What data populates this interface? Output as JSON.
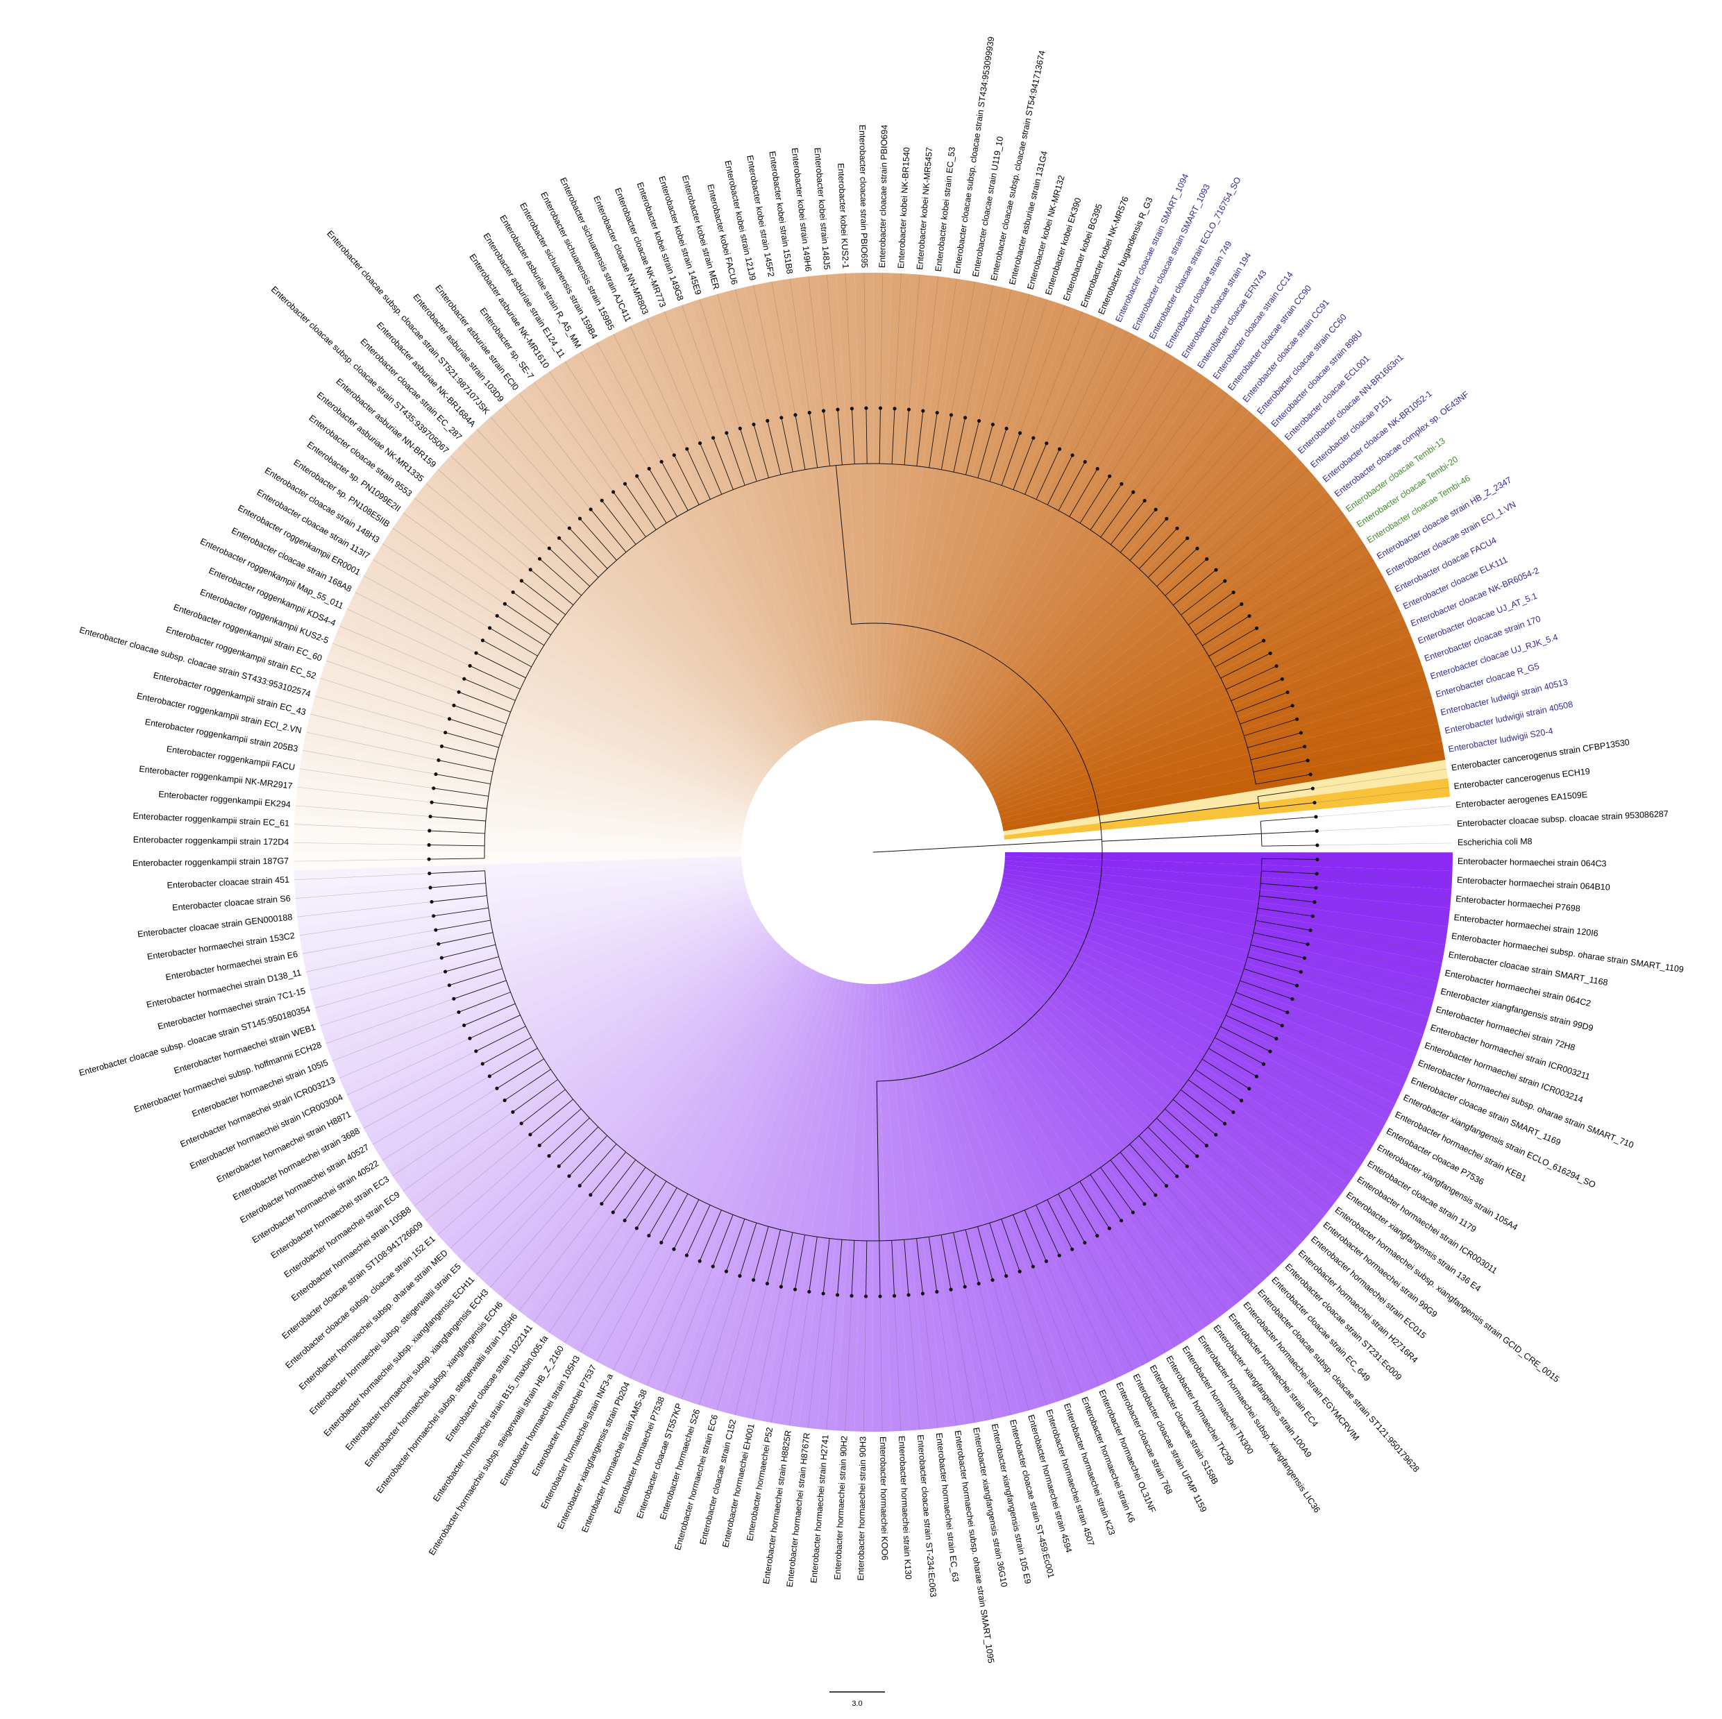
{
  "tree": {
    "clades": [
      {
        "color_from": "#fefbf8",
        "color_to": "#c5600a",
        "leaves": [
          {
            "label": "Enterobacter roggenkampii strain 187G7"
          },
          {
            "label": "Enterobacter roggenkampii strain 172D4"
          },
          {
            "label": "Enterobacter roggenkampii strain EC_61"
          },
          {
            "label": "Enterobacter roggenkampii EK294"
          },
          {
            "label": "Enterobacter roggenkampii NK-MR2917"
          },
          {
            "label": "Enterobacter roggenkampii FACU"
          },
          {
            "label": "Enterobacter roggenkampii strain 205B3"
          },
          {
            "label": "Enterobacter roggenkampii strain ECl_2.VN"
          },
          {
            "label": "Enterobacter roggenkampii strain EC_43"
          },
          {
            "label": "Enterobacter cloacae subsp. cloacae strain ST433:953102574"
          },
          {
            "label": "Enterobacter roggenkampii strain EC_52"
          },
          {
            "label": "Enterobacter roggenkampii strain EC_60"
          },
          {
            "label": "Enterobacter roggenkampii KUS2-5"
          },
          {
            "label": "Enterobacter roggenkampii KDS4-4"
          },
          {
            "label": "Enterobacter roggenkampii Map_55_011"
          },
          {
            "label": "Enterobacter cloacae strain 168A8"
          },
          {
            "label": "Enterobacter roggenkampii ER0001"
          },
          {
            "label": "Enterobacter cloacae strain 113I7"
          },
          {
            "label": "Enterobacter cloacae strain 148H3"
          },
          {
            "label": "Enterobacter sp. PN108E5IIB"
          },
          {
            "label": "Enterobacter sp. PN1099E2II"
          },
          {
            "label": "Enterobacter cloacae strain 9553"
          },
          {
            "label": "Enterobacter asburiae NK-MR1335"
          },
          {
            "label": "Enterobacter asburiae NN-BR159"
          },
          {
            "label": "Enterobacter cloacae subsp. cloacae strain ST435:939705067"
          },
          {
            "label": "Enterobacter cloacae strain EC_287"
          },
          {
            "label": "Enterobacter asburiae NK-BR1684A"
          },
          {
            "label": "Enterobacter cloacae subsp. cloacae strain ST521:987107JSK"
          },
          {
            "label": "Enterobacter asburiae strain 103D9"
          },
          {
            "label": "Enterobacter asburiae strain ECl0"
          },
          {
            "label": "Enterobacter sp. SE-7"
          },
          {
            "label": "Enterobacter asburiae NK-MR1610"
          },
          {
            "label": "Enterobacter asburiae strain E124_11"
          },
          {
            "label": "Enterobacter asburiae strain R_A5_MM"
          },
          {
            "label": "Enterobacter sichuanensis strain 159B4"
          },
          {
            "label": "Enterobacter sichuanensis strain 159B5"
          },
          {
            "label": "Enterobacter sichuanensis strain AJC411"
          },
          {
            "label": "Enterobacter cloacae NN-MR803"
          },
          {
            "label": "Enterobacter cloacae NK-MR773"
          },
          {
            "label": "Enterobacter kobei strain 149G8"
          },
          {
            "label": "Enterobacter kobei strain 145E9"
          },
          {
            "label": "Enterobacter kobei strain MER"
          },
          {
            "label": "Enterobacter kobei FACU6"
          },
          {
            "label": "Enterobacter kobei strain 121J9"
          },
          {
            "label": "Enterobacter kobei strain 145F2"
          },
          {
            "label": "Enterobacter kobei strain 151B8"
          },
          {
            "label": "Enterobacter kobei strain 149H6"
          },
          {
            "label": "Enterobacter kobei strain 148J5"
          },
          {
            "label": "Enterobacter kobei KUS2-1"
          },
          {
            "label": "Enterobacter cloacae strain PBIO695"
          },
          {
            "label": "Enterobacter cloacae strain PBIO694"
          },
          {
            "label": "Enterobacter kobei NK-BR1540"
          },
          {
            "label": "Enterobacter kobei NK-MR5457"
          },
          {
            "label": "Enterobacter kobei strain EC_53"
          },
          {
            "label": "Enterobacter cloacae subsp. cloacae strain ST434:953099939"
          },
          {
            "label": "Enterobacter cloacae strain U119_10"
          },
          {
            "label": "Enterobacter cloacae subsp. cloacae strain ST54:941713674"
          },
          {
            "label": "Enterobacter asburiae strain 131G4"
          },
          {
            "label": "Enterobacter kobei NK-MR132"
          },
          {
            "label": "Enterobacter kobei EK390"
          },
          {
            "label": "Enterobacter kobei BG395"
          },
          {
            "label": "Enterobacter kobei NK-MR576"
          },
          {
            "label": "Enterobacter bugandensis R_G3"
          },
          {
            "label": "Enterobacter cloacae strain SMART_1094",
            "color": "#2e2a95"
          },
          {
            "label": "Enterobacter cloacae strain SMART_1093",
            "color": "#2e2a95"
          },
          {
            "label": "Enterobacter cloacae strain ECLO_716754_SO",
            "color": "#2e2a95"
          },
          {
            "label": "Enterobacter cloacae strain 749",
            "color": "#2e2a95"
          },
          {
            "label": "Enterobacter cloacae strain 194",
            "color": "#2e2a95"
          },
          {
            "label": "Enterobacter cloacae EFN743",
            "color": "#2e2a95"
          },
          {
            "label": "Enterobacter cloacae strain CC14",
            "color": "#2e2a95"
          },
          {
            "label": "Enterobacter cloacae strain CC90",
            "color": "#2e2a95"
          },
          {
            "label": "Enterobacter cloacae strain CC91",
            "color": "#2e2a95"
          },
          {
            "label": "Enterobacter cloacae strain CC60",
            "color": "#2e2a95"
          },
          {
            "label": "Enterobacter cloacae strain 898U",
            "color": "#2e2a95"
          },
          {
            "label": "Enterobacter cloacae ECL001",
            "color": "#2e2a95"
          },
          {
            "label": "Enterobacter cloacae NN-BR1663n1",
            "color": "#2e2a95"
          },
          {
            "label": "Enterobacter cloacae P151",
            "color": "#2e2a95"
          },
          {
            "label": "Enterobacter cloacae NK-BR1052-1",
            "color": "#2e2a95"
          },
          {
            "label": "Enterobacter cloacae complex sp. OE43NF",
            "color": "#2e2a95"
          },
          {
            "label": "Enterobacter cloacae Tembi-13",
            "color": "#3f8a2a"
          },
          {
            "label": "Enterobacter cloacae Tembi-20",
            "color": "#3f8a2a"
          },
          {
            "label": "Enterobacter cloacae Tembi-46",
            "color": "#3f8a2a"
          },
          {
            "label": "Enterobacter cloacae strain HB_Z_2347",
            "color": "#2e2a95"
          },
          {
            "label": "Enterobacter cloacae strain ECl_1.VN",
            "color": "#2e2a95"
          },
          {
            "label": "Enterobacter cloacae FACU4",
            "color": "#2e2a95"
          },
          {
            "label": "Enterobacter cloacae ELK111",
            "color": "#2e2a95"
          },
          {
            "label": "Enterobacter cloacae NK-BR6054-2",
            "color": "#2e2a95"
          },
          {
            "label": "Enterobacter cloacae UJ_AT_5.1",
            "color": "#2e2a95"
          },
          {
            "label": "Enterobacter cloacae strain 170",
            "color": "#2e2a95"
          },
          {
            "label": "Enterobacter cloacae UJ_RJK_5.4",
            "color": "#2e2a95"
          },
          {
            "label": "Enterobacter cloacae R_G5",
            "color": "#2e2a95"
          },
          {
            "label": "Enterobacter ludwigii strain 40513",
            "color": "#2e2a95"
          },
          {
            "label": "Enterobacter ludwigii strain 40508",
            "color": "#2e2a95"
          },
          {
            "label": "Enterobacter ludwigii S20-4",
            "color": "#2e2a95"
          }
        ]
      },
      {
        "color_from": "#fde9a8",
        "color_to": "#f8c23a",
        "leaves": [
          {
            "label": "Enterobacter cancerogenus strain CFBP13530"
          },
          {
            "label": "Enterobacter cancerogenus ECH19"
          }
        ]
      },
      {
        "color_from": "#ffffff",
        "color_to": "#ffffff",
        "leaves": [
          {
            "label": "Enterobacter aerogenes EA1509E"
          },
          {
            "label": "Enterobacter cloacae subsp. cloacae strain 953086287"
          },
          {
            "label": "Escherichia coli M8"
          }
        ]
      },
      {
        "color_from": "#8a2af4",
        "color_to": "#f6f1fd",
        "leaves": [
          {
            "label": "Enterobacter hormaechei strain 064C3"
          },
          {
            "label": "Enterobacter hormaechei strain 064B10"
          },
          {
            "label": "Enterobacter hormaechei P7698"
          },
          {
            "label": "Enterobacter hormaechei strain 120I6"
          },
          {
            "label": "Enterobacter hormaechei subsp. oharae strain SMART_1109"
          },
          {
            "label": "Enterobacter cloacae strain SMART_1168"
          },
          {
            "label": "Enterobacter hormaechei strain 064C2"
          },
          {
            "label": "Enterobacter xiangfangensis strain 99D9"
          },
          {
            "label": "Enterobacter hormaechei strain 72H8"
          },
          {
            "label": "Enterobacter hormaechei strain ICR003211"
          },
          {
            "label": "Enterobacter hormaechei strain ICR003214"
          },
          {
            "label": "Enterobacter hormaechei subsp. oharae strain SMART_710"
          },
          {
            "label": "Enterobacter cloacae strain SMART_1169"
          },
          {
            "label": "Enterobacter xiangfangensis strain ECLO_616294_SO"
          },
          {
            "label": "Enterobacter hormaechei strain KEB1"
          },
          {
            "label": "Enterobacter cloacae P7536"
          },
          {
            "label": "Enterobacter xiangfangensis strain 105A4"
          },
          {
            "label": "Enterobacter cloacae strain 1179"
          },
          {
            "label": "Enterobacter hormaechei strain ICR003011"
          },
          {
            "label": "Enterobacter xiangfangensis strain 136 E4"
          },
          {
            "label": "Enterobacter hormaechei subsp. xiangfangensis strain GCID_CRE_0015"
          },
          {
            "label": "Enterobacter hormaechei strain 99G9"
          },
          {
            "label": "Enterobacter hormaechei strain EC015"
          },
          {
            "label": "Enterobacter hormaechei strain H2716R4"
          },
          {
            "label": "Enterobacter cloacae strain ST231:Ec009"
          },
          {
            "label": "Enterobacter cloacae strain EC_649"
          },
          {
            "label": "Enterobacter cloacae subsp. cloacae strain ST121:950179628"
          },
          {
            "label": "Enterobacter hormaechei strain EGYMCRVIM"
          },
          {
            "label": "Enterobacter hormaechei strain EC4"
          },
          {
            "label": "Enterobacter xiangfangensis strain 100A9"
          },
          {
            "label": "Enterobacter hormaechei subsp. xiangfangensis LIC36"
          },
          {
            "label": "Enterobacter hormaechei TN300"
          },
          {
            "label": "Enterobacter hormaechei TK299"
          },
          {
            "label": "Enterobacter cloacae strain S158B"
          },
          {
            "label": "Enterobacter cloacae strain UFMP 1159"
          },
          {
            "label": "Enterobacter cloacae strain 768"
          },
          {
            "label": "Enterobacter hormaechei OL31NF"
          },
          {
            "label": "Enterobacter hormaechei strain K6"
          },
          {
            "label": "Enterobacter hormaechei strain K23"
          },
          {
            "label": "Enterobacter hormaechei strain 4507"
          },
          {
            "label": "Enterobacter hormaechei strain 4594"
          },
          {
            "label": "Enterobacter cloacae strain ST-459:Ec001"
          },
          {
            "label": "Enterobacter xiangfangensis strain 105 E9"
          },
          {
            "label": "Enterobacter xiangfangensis strain 36G10"
          },
          {
            "label": "Enterobacter hormaechei subsp. oharae strain SMART_1095"
          },
          {
            "label": "Enterobacter hormaechei strain EC_63"
          },
          {
            "label": "Enterobacter cloacae strain ST-234:Ec063"
          },
          {
            "label": "Enterobacter hormaechei strain K130"
          },
          {
            "label": "Enterobacter hormaechei KOO6"
          },
          {
            "label": "Enterobacter hormaechei strain 90H3"
          },
          {
            "label": "Enterobacter hormaechei strain 90H2"
          },
          {
            "label": "Enterobacter hormaechei strain H2741"
          },
          {
            "label": "Enterobacter hormaechei strain H8767R"
          },
          {
            "label": "Enterobacter hormaechei strain H8825R"
          },
          {
            "label": "Enterobacter hormaechei P52"
          },
          {
            "label": "Enterobacter hormaechei EH001"
          },
          {
            "label": "Enterobacter cloacae strain C152"
          },
          {
            "label": "Enterobacter hormaechei strain EC6"
          },
          {
            "label": "Enterobacter hormaechei S26"
          },
          {
            "label": "Enterobacter cloacae ST557KP"
          },
          {
            "label": "Enterobacter hormaechei P7538"
          },
          {
            "label": "Enterobacter hormaechei strain AMS-38"
          },
          {
            "label": "Enterobacter xiangfangensis strain Pb204"
          },
          {
            "label": "Enterobacter hormaechei strain INF3-a"
          },
          {
            "label": "Enterobacter hormaechei P7537"
          },
          {
            "label": "Enterobacter hormaechei strain 105H3"
          },
          {
            "label": "Enterobacter hormaechei subsp. steigerwaltii strain HB_Z_2160"
          },
          {
            "label": "Enterobacter hormaechei strain B15_maxbin.005.fa"
          },
          {
            "label": "Enterobacter cloacae strain 1022141"
          },
          {
            "label": "Enterobacter hormaechei subsp. steigerwaltii strain 105H6"
          },
          {
            "label": "Enterobacter hormaechei subsp. xiangfangensis ECH6"
          },
          {
            "label": "Enterobacter hormaechei subsp. xiangfangensis ECH3"
          },
          {
            "label": "Enterobacter hormaechei subsp. xiangfangensis ECH11"
          },
          {
            "label": "Enterobacter hormaechei subsp. steigerwaltii strain E5"
          },
          {
            "label": "Enterobacter hormaechei subsp. oharae strain MED"
          },
          {
            "label": "Enterobacter cloacae subsp. cloacae strain 152 E1"
          },
          {
            "label": "Enterobacter cloacae strain ST108:941726609"
          },
          {
            "label": "Enterobacter hormaechei strain 105B8"
          },
          {
            "label": "Enterobacter hormaechei strain EC9"
          },
          {
            "label": "Enterobacter hormaechei strain EC3"
          },
          {
            "label": "Enterobacter hormaechei strain 40522"
          },
          {
            "label": "Enterobacter hormaechei strain 40527"
          },
          {
            "label": "Enterobacter hormaechei strain 3688"
          },
          {
            "label": "Enterobacter hormaechei strain H8871"
          },
          {
            "label": "Enterobacter hormaechei strain ICR003004"
          },
          {
            "label": "Enterobacter hormaechei strain ICR003213"
          },
          {
            "label": "Enterobacter hormaechei strain 105I5"
          },
          {
            "label": "Enterobacter hormaechei subsp. hoffmannii ECH28"
          },
          {
            "label": "Enterobacter hormaechei strain WEB1"
          },
          {
            "label": "Enterobacter cloacae subsp. cloacae strain ST145:950180354"
          },
          {
            "label": "Enterobacter hormaechei strain 7C1-15"
          },
          {
            "label": "Enterobacter hormaechei strain D138_11"
          },
          {
            "label": "Enterobacter hormaechei strain E6"
          },
          {
            "label": "Enterobacter hormaechei strain 153C2"
          },
          {
            "label": "Enterobacter cloacae strain GEN000188"
          },
          {
            "label": "Enterobacter cloacae strain S6"
          },
          {
            "label": "Enterobacter cloacae strain 451"
          }
        ]
      }
    ],
    "scale_bar": {
      "label": "3.0"
    }
  }
}
